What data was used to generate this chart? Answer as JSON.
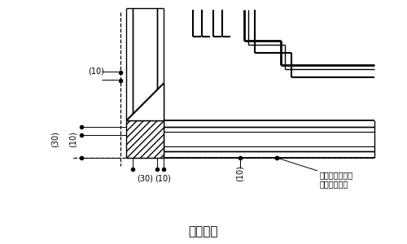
{
  "title": "出隅平面",
  "title_fontsize": 11,
  "background_color": "#ffffff",
  "line_color": "#000000",
  "label_10_top": "(10)",
  "label_30_left": "(30)",
  "label_10_left": "(10)",
  "label_30_bottom": "(30)",
  "label_10_bottom": "(10)",
  "label_10_vertical": "(10)",
  "annotation_text": "上部ボーダー冈\n手すりを示す"
}
